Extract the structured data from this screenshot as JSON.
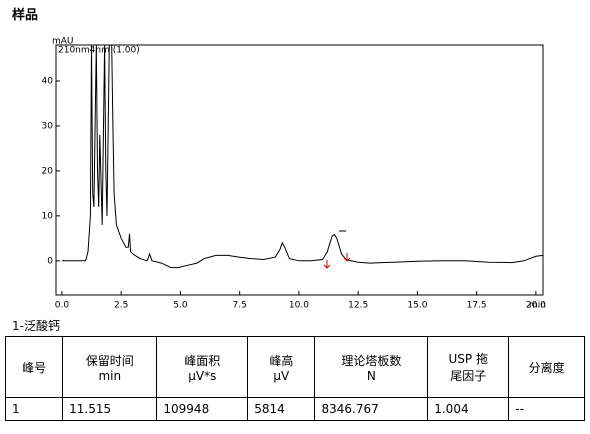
{
  "header": {
    "title": "样品"
  },
  "chart_data": {
    "type": "line",
    "y_label": "mAU",
    "x_label": "min",
    "x": [
      0,
      1.0,
      1.1,
      1.2,
      1.25,
      1.3,
      1.35,
      1.45,
      1.5,
      1.55,
      1.6,
      1.65,
      1.7,
      1.8,
      1.85,
      1.9,
      2.0,
      2.1,
      2.15,
      2.2,
      2.3,
      2.5,
      2.7,
      2.8,
      2.85,
      2.9,
      3.0,
      3.3,
      3.6,
      3.7,
      3.8,
      4.2,
      4.6,
      4.9,
      5.3,
      5.7,
      6.0,
      6.5,
      7.0,
      7.5,
      8.0,
      8.5,
      9.0,
      9.2,
      9.3,
      9.4,
      9.6,
      10.0,
      10.5,
      11.0,
      11.2,
      11.4,
      11.5,
      11.6,
      11.8,
      12.0,
      12.5,
      13,
      14,
      15,
      16,
      17,
      18,
      19,
      19.5,
      20.0,
      20.3
    ],
    "series": [
      {
        "name": "210nm4nm (1.00)",
        "color": "#000000",
        "values": [
          0,
          0,
          2,
          10,
          48,
          15,
          12,
          48,
          20,
          12,
          28,
          18,
          8,
          48,
          20,
          10,
          48,
          48,
          30,
          15,
          8,
          5,
          3,
          3,
          6,
          2,
          1.5,
          0.5,
          0,
          1.5,
          0,
          -0.5,
          -1.5,
          -1.5,
          -1,
          -0.5,
          0.5,
          1.2,
          1.2,
          0.8,
          0.5,
          0.3,
          0.8,
          2.5,
          4,
          3,
          0.5,
          0,
          0,
          0.3,
          2,
          5.5,
          5.8,
          5,
          1.5,
          0.2,
          -0.3,
          -0.5,
          -0.3,
          -0.1,
          0,
          0,
          -0.3,
          -0.4,
          0,
          1,
          1.2
        ]
      }
    ],
    "xlim": [
      -0.25,
      20.3
    ],
    "ylim": [
      -7.6,
      48
    ],
    "xticks": [
      {
        "value": 0,
        "label": "0.0"
      },
      {
        "value": 2.5,
        "label": "2.5"
      },
      {
        "value": 5,
        "label": "5.0"
      },
      {
        "value": 7.5,
        "label": "7.5"
      },
      {
        "value": 10,
        "label": "10.0"
      },
      {
        "value": 12.5,
        "label": "12.5"
      },
      {
        "value": 15,
        "label": "15.0"
      },
      {
        "value": 17.5,
        "label": "17.5"
      },
      {
        "value": 20,
        "label": "20.0"
      }
    ],
    "yticks": [
      0,
      10,
      20,
      30,
      40
    ]
  },
  "table": {
    "title": "1-泛酸钙",
    "header": [
      [
        "峰号"
      ],
      [
        "保留时间",
        "min"
      ],
      [
        "峰面积",
        "μV*s"
      ],
      [
        "峰高",
        "μV"
      ],
      [
        "理论塔板数",
        "N"
      ],
      [
        "USP 拖",
        "尾因子"
      ],
      [
        "分离度"
      ]
    ],
    "rows": [
      [
        1,
        11.515,
        109948,
        5814,
        8346.767,
        1.004,
        "--"
      ]
    ]
  }
}
